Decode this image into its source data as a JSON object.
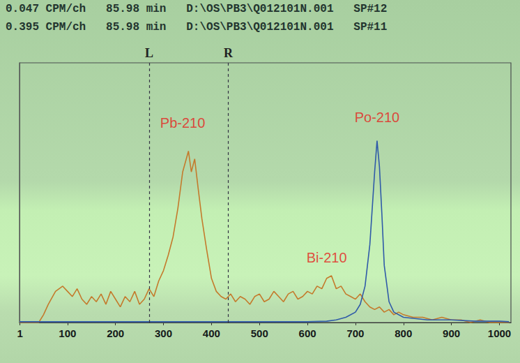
{
  "header": [
    "0.047 CPM/ch   85.98 min   D:\\OS\\PB3\\Q012101N.001   SP#12",
    "0.395 CPM/ch   85.98 min   D:\\OS\\PB3\\Q012101N.001   SP#11"
  ],
  "chart_data": {
    "type": "line",
    "xlim": [
      0,
      1024
    ],
    "xticks": [
      1,
      100,
      200,
      300,
      400,
      500,
      600,
      700,
      800,
      900,
      1000
    ],
    "ylim": [
      0,
      100
    ],
    "tick_labels": "x",
    "grid": false,
    "marker": "none",
    "line_style": "solid",
    "series": [
      {
        "color": "#c47a2c",
        "x": [
          0,
          20,
          40,
          50,
          60,
          75,
          90,
          100,
          110,
          120,
          130,
          140,
          150,
          160,
          170,
          180,
          190,
          200,
          210,
          220,
          230,
          240,
          250,
          260,
          270,
          280,
          290,
          300,
          310,
          320,
          330,
          340,
          352,
          358,
          365,
          372,
          380,
          390,
          400,
          410,
          420,
          430,
          440,
          450,
          460,
          470,
          480,
          490,
          500,
          510,
          520,
          530,
          540,
          550,
          560,
          570,
          580,
          590,
          600,
          610,
          620,
          630,
          640,
          650,
          660,
          670,
          680,
          690,
          700,
          710,
          720,
          730,
          740,
          750,
          760,
          770,
          780,
          790,
          800,
          820,
          840,
          860,
          880,
          900,
          920,
          940,
          960,
          980,
          1000,
          1020
        ],
        "values": [
          0,
          0,
          0,
          3,
          7,
          12,
          14,
          12,
          10,
          13,
          9,
          7,
          10,
          8,
          11,
          7,
          12,
          9,
          6,
          10,
          8,
          12,
          7,
          9,
          13,
          10,
          16,
          20,
          26,
          33,
          44,
          58,
          66,
          58,
          63,
          52,
          40,
          28,
          17,
          12,
          10,
          9,
          11,
          8,
          10,
          9,
          7,
          10,
          11,
          8,
          9,
          12,
          10,
          8,
          11,
          12,
          9,
          10,
          12,
          11,
          14,
          13,
          17,
          18,
          13,
          14,
          11,
          10,
          9,
          11,
          8,
          6,
          5,
          6,
          4,
          5,
          3,
          4,
          3,
          2,
          2,
          1,
          2,
          1,
          1,
          0,
          1,
          0,
          0,
          0
        ]
      },
      {
        "color": "#2f5aa8",
        "x": [
          0,
          100,
          200,
          300,
          400,
          500,
          600,
          640,
          660,
          680,
          700,
          710,
          720,
          730,
          740,
          745,
          750,
          755,
          760,
          770,
          780,
          800,
          850,
          900,
          950,
          1000,
          1020
        ],
        "values": [
          0.3,
          0.3,
          0.3,
          0.3,
          0.3,
          0.3,
          0.3,
          0.5,
          1,
          2,
          4,
          7,
          14,
          30,
          58,
          70,
          60,
          42,
          22,
          8,
          4,
          2,
          1,
          1,
          0.5,
          0.5,
          0.3
        ]
      }
    ],
    "markers": [
      {
        "label": "L",
        "x": 270
      },
      {
        "label": "R",
        "x": 435
      }
    ],
    "annotations": [
      {
        "text": "Pb-210",
        "x": 340,
        "y": 77,
        "color": "#e5231d"
      },
      {
        "text": "Bi-210",
        "x": 640,
        "y": 25,
        "color": "#e5231d"
      },
      {
        "text": "Po-210",
        "x": 745,
        "y": 79,
        "color": "#e5231d"
      }
    ]
  }
}
